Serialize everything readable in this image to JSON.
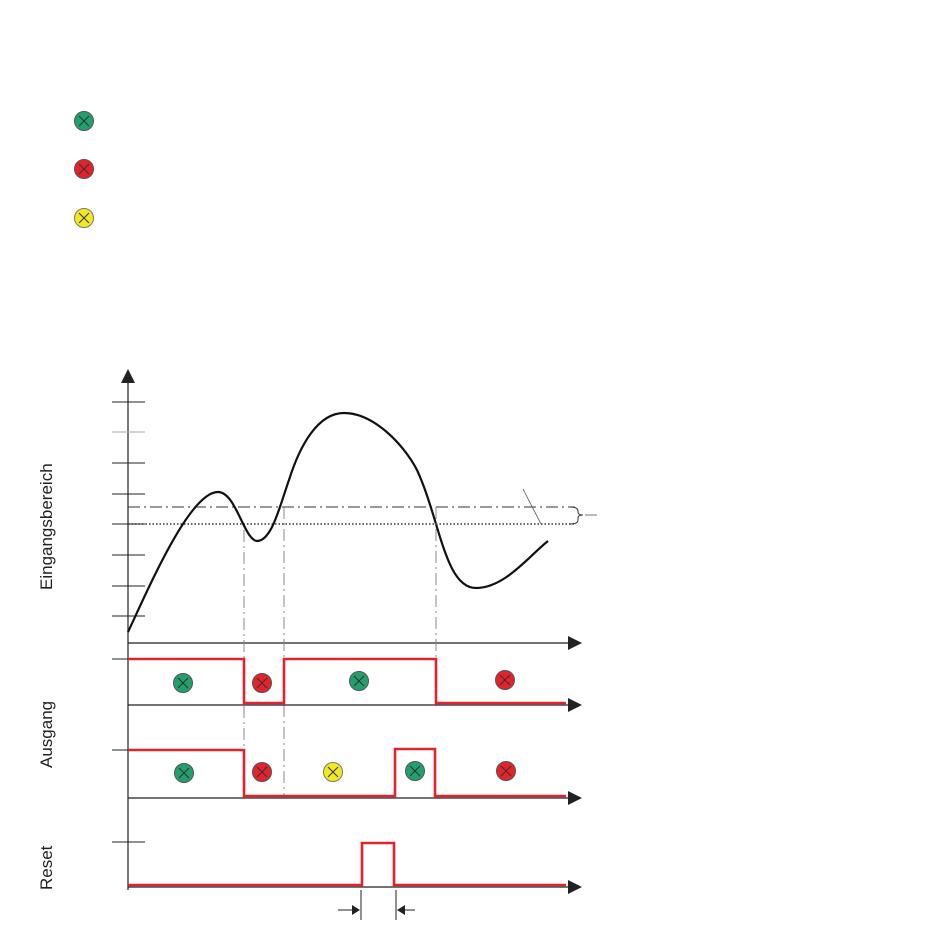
{
  "legend": {
    "items": [
      {
        "icon": "green-x-indicator-icon",
        "color": "#21a06e"
      },
      {
        "icon": "red-x-indicator-icon",
        "color": "#e4222c"
      },
      {
        "icon": "yellow-x-indicator-icon",
        "color": "#f2ea1c"
      }
    ]
  },
  "labels": {
    "input_range": "Eingangsbereich",
    "output": "Ausgang",
    "reset": "Reset"
  },
  "colors": {
    "curve": "#111111",
    "signal": "#e4222c",
    "axis": "#222222",
    "guide": "#888888",
    "green": "#21a06e",
    "red": "#e4222c",
    "yellow": "#f2ea1c"
  }
}
